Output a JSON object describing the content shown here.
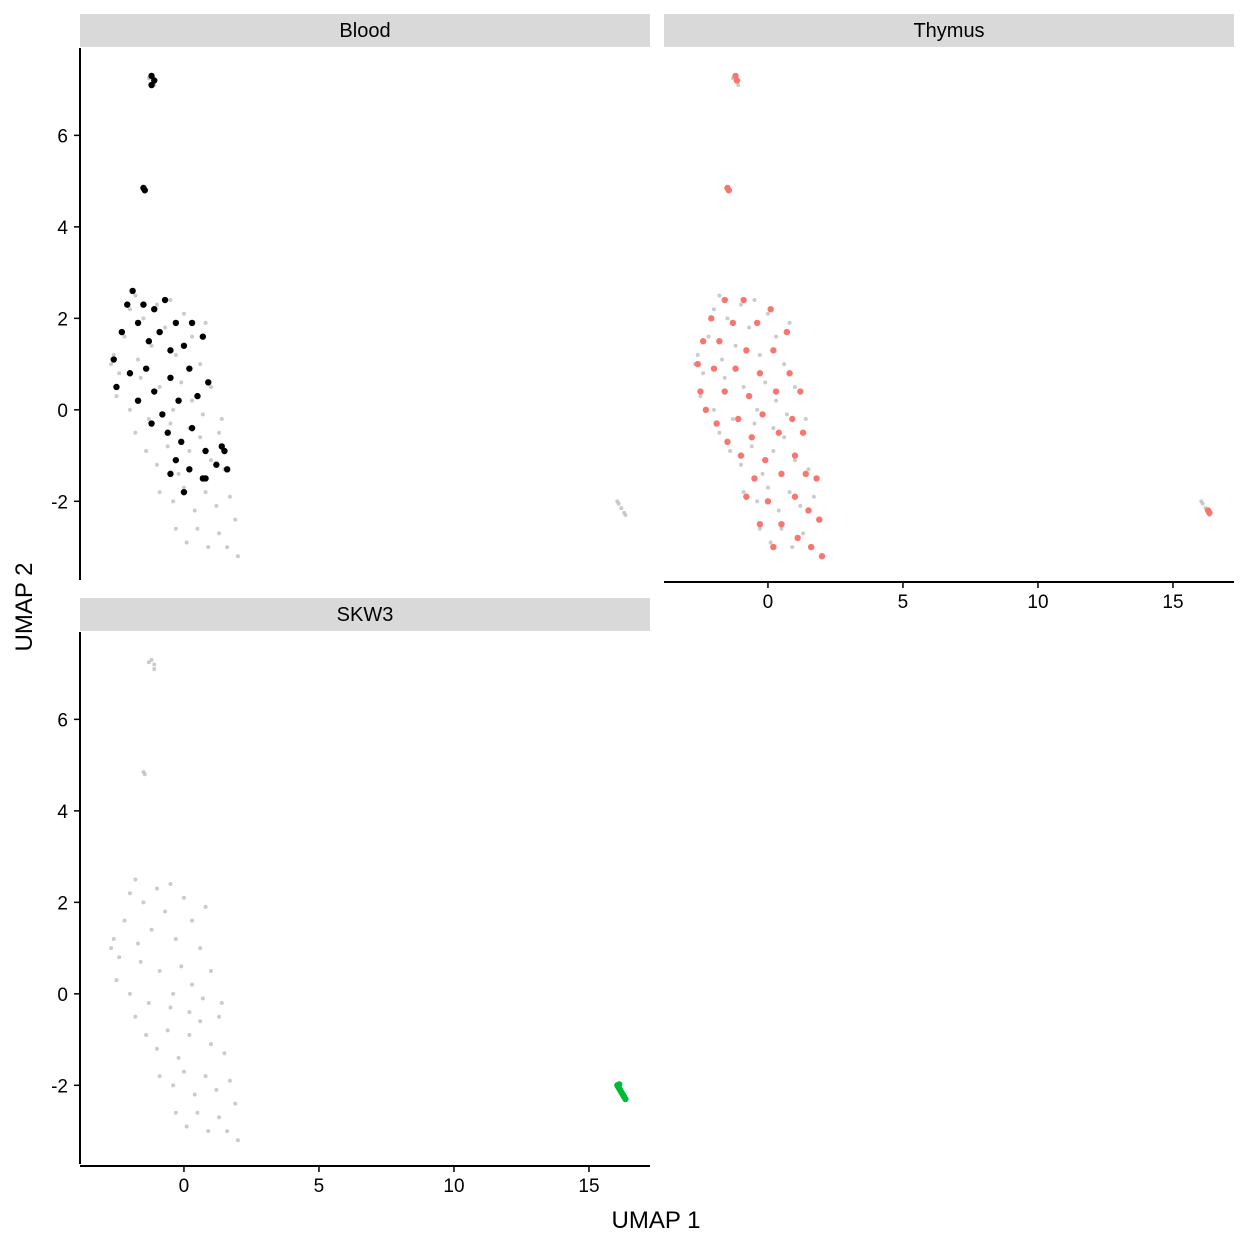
{
  "chart_data": {
    "type": "scatter",
    "xlabel": "UMAP 1",
    "ylabel": "UMAP 2",
    "xlim": [
      -3.85,
      17.26
    ],
    "ylim": [
      -3.72,
      7.91
    ],
    "xticks": [
      0,
      5,
      10,
      15
    ],
    "yticks": [
      -2,
      0,
      2,
      4,
      6
    ],
    "background": {
      "color": "#bebebe",
      "x": [
        -2.6,
        -2.4,
        -2.2,
        -2.0,
        -1.8,
        -1.5,
        -1.2,
        -1.0,
        -0.7,
        -0.5,
        -0.3,
        0.0,
        0.3,
        0.6,
        0.8,
        -2.5,
        -2.0,
        -1.6,
        -1.3,
        -0.9,
        -0.5,
        -0.1,
        0.3,
        0.7,
        1.0,
        -1.8,
        -1.4,
        -1.0,
        -0.6,
        -0.2,
        0.2,
        0.6,
        1.0,
        1.3,
        1.5,
        -0.9,
        -0.4,
        0.0,
        0.4,
        0.8,
        1.2,
        1.7,
        1.9,
        -0.3,
        0.1,
        0.5,
        0.9,
        1.3,
        1.6,
        2.0,
        -2.7,
        -1.7,
        -0.4,
        0.2,
        1.4,
        -1.2,
        -1.1,
        -1.3,
        -1.1,
        -1.5,
        -1.45,
        16.1,
        16.2,
        16.3,
        16.05,
        16.35
      ],
      "values": [
        1.2,
        0.8,
        1.6,
        2.2,
        2.5,
        2.0,
        1.4,
        2.3,
        1.8,
        2.4,
        1.2,
        2.1,
        1.6,
        1.0,
        1.9,
        0.3,
        0.0,
        0.7,
        -0.2,
        0.5,
        -0.3,
        0.6,
        0.2,
        -0.1,
        0.5,
        -0.5,
        -0.9,
        -1.2,
        -0.8,
        -1.4,
        -0.9,
        -0.6,
        -1.1,
        -0.5,
        -1.3,
        -1.8,
        -2.0,
        -1.7,
        -2.2,
        -1.8,
        -2.1,
        -1.9,
        -2.4,
        -2.6,
        -2.9,
        -2.6,
        -3.0,
        -2.7,
        -3.0,
        -3.2,
        1.0,
        1.1,
        0.0,
        -0.4,
        -0.2,
        7.3,
        7.2,
        7.25,
        7.1,
        4.85,
        4.8,
        -2.05,
        -2.15,
        -2.25,
        -2.0,
        -2.3
      ]
    },
    "panels": [
      {
        "title": "Blood",
        "series": [
          {
            "color": "#000000",
            "x": [
              -2.6,
              -2.3,
              -2.1,
              -1.9,
              -1.7,
              -1.5,
              -1.3,
              -1.1,
              -0.9,
              -0.7,
              -0.5,
              -0.3,
              0.0,
              0.3,
              0.7,
              -2.5,
              -2.0,
              -1.7,
              -1.4,
              -1.1,
              -0.8,
              -0.5,
              -0.2,
              0.2,
              0.5,
              0.9,
              -1.2,
              -0.6,
              -0.1,
              0.3,
              0.8,
              1.4,
              -0.3,
              0.2,
              0.7,
              1.2,
              1.6,
              -0.5,
              0.0,
              0.8,
              1.5,
              -1.2,
              -1.1,
              -1.2,
              -1.5,
              -1.45
            ],
            "values": [
              1.1,
              1.7,
              2.3,
              2.6,
              1.9,
              2.3,
              1.5,
              2.2,
              1.7,
              2.4,
              1.3,
              1.9,
              1.4,
              1.9,
              1.6,
              0.5,
              0.8,
              0.2,
              0.9,
              0.4,
              -0.1,
              0.7,
              0.2,
              0.9,
              0.3,
              0.6,
              -0.3,
              -0.5,
              -0.7,
              -0.4,
              -0.9,
              -0.8,
              -1.1,
              -1.3,
              -1.5,
              -1.2,
              -1.3,
              -1.4,
              -1.8,
              -1.5,
              -0.9,
              7.3,
              7.2,
              7.1,
              4.85,
              4.8
            ]
          }
        ]
      },
      {
        "title": "Thymus",
        "series": [
          {
            "color": "#f8766d",
            "x": [
              -2.6,
              -2.5,
              -2.4,
              -2.3,
              -2.1,
              -2.0,
              -1.9,
              -1.8,
              -1.6,
              -1.6,
              -1.5,
              -1.3,
              -1.2,
              -1.1,
              -1.0,
              -0.9,
              -0.8,
              -0.7,
              -0.6,
              -0.5,
              -0.4,
              -0.3,
              -0.2,
              -0.1,
              0.0,
              0.1,
              0.2,
              0.3,
              0.4,
              0.5,
              0.5,
              0.7,
              0.8,
              0.9,
              1.0,
              1.0,
              1.1,
              1.3,
              1.4,
              1.5,
              1.6,
              1.8,
              1.9,
              2.0,
              0.2,
              -0.3,
              -0.8,
              1.2,
              -1.2,
              -1.15,
              -1.5,
              -1.45,
              16.3,
              16.35
            ],
            "values": [
              1.0,
              0.4,
              1.5,
              0.0,
              2.0,
              0.9,
              -0.3,
              1.5,
              2.4,
              0.4,
              -0.7,
              1.9,
              0.9,
              -0.2,
              -1.0,
              2.4,
              1.3,
              0.3,
              -0.6,
              -1.5,
              1.9,
              0.8,
              -0.1,
              -1.1,
              -2.0,
              2.2,
              1.3,
              0.4,
              -0.5,
              -1.4,
              -2.5,
              1.7,
              0.8,
              -0.2,
              -1.0,
              -1.9,
              -2.8,
              -0.5,
              -1.4,
              -2.2,
              -3.0,
              -1.5,
              -2.4,
              -3.2,
              -3.0,
              -2.5,
              -1.9,
              0.4,
              7.3,
              7.2,
              4.85,
              4.8,
              -2.2,
              -2.25
            ]
          }
        ]
      },
      {
        "title": "SKW3",
        "series": [
          {
            "color": "#00ba38",
            "x": [
              16.05,
              16.1,
              16.15,
              16.2,
              16.25,
              16.3,
              16.35,
              16.12
            ],
            "values": [
              -2.0,
              -2.05,
              -2.1,
              -2.15,
              -2.2,
              -2.25,
              -2.3,
              -1.98
            ]
          }
        ]
      }
    ]
  }
}
